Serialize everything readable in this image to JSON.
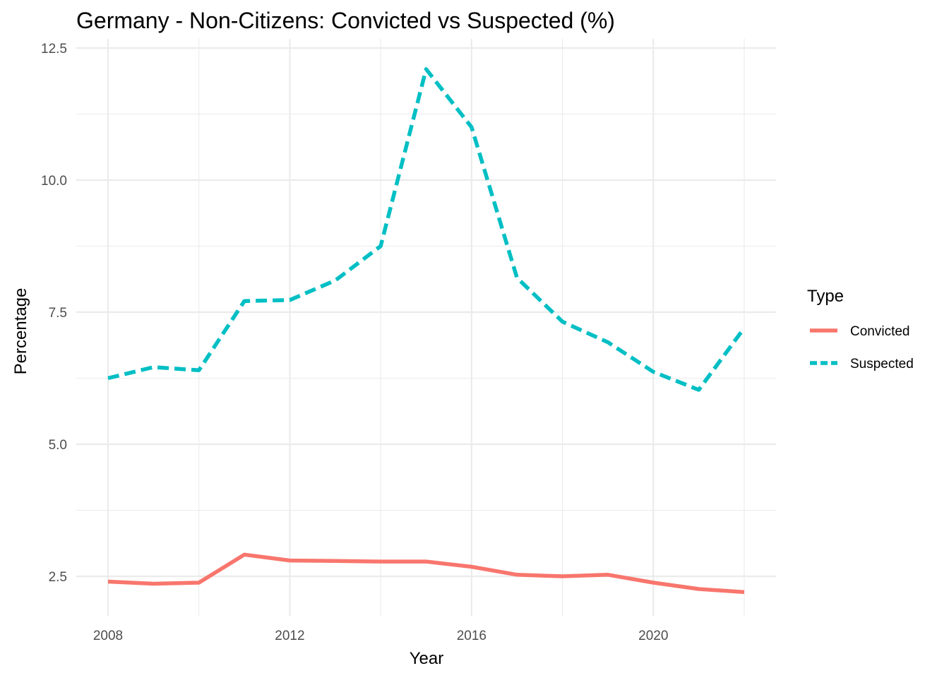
{
  "chart_data": {
    "type": "line",
    "title": "Germany - Non-Citizens: Convicted vs Suspected (%)",
    "xlabel": "Year",
    "ylabel": "Percentage",
    "x": [
      2008,
      2009,
      2010,
      2011,
      2012,
      2013,
      2014,
      2015,
      2016,
      2017,
      2018,
      2019,
      2020,
      2021,
      2022
    ],
    "xlim": [
      2008,
      2022
    ],
    "ylim": [
      2.0,
      12.5
    ],
    "x_ticks": [
      2008,
      2012,
      2016,
      2020
    ],
    "x_tick_labels": [
      "2008",
      "2012",
      "2016",
      "2020"
    ],
    "y_ticks": [
      2.5,
      5.0,
      7.5,
      10.0,
      12.5
    ],
    "y_tick_labels": [
      "2.5",
      "5.0",
      "7.5",
      "10.0",
      "12.5"
    ],
    "legend": {
      "title": "Type",
      "position": "right"
    },
    "series": [
      {
        "name": "Convicted",
        "color": "#F8766D",
        "dash": "solid",
        "values": [
          2.4,
          2.36,
          2.38,
          2.91,
          2.8,
          2.79,
          2.78,
          2.78,
          2.68,
          2.53,
          2.5,
          2.53,
          2.38,
          2.26,
          2.2
        ]
      },
      {
        "name": "Suspected",
        "color": "#00BFC4",
        "dash": "dashed",
        "values": [
          6.25,
          6.46,
          6.4,
          7.71,
          7.73,
          8.1,
          8.75,
          12.1,
          11.0,
          8.15,
          7.32,
          6.93,
          6.37,
          6.03,
          7.2
        ]
      }
    ]
  }
}
